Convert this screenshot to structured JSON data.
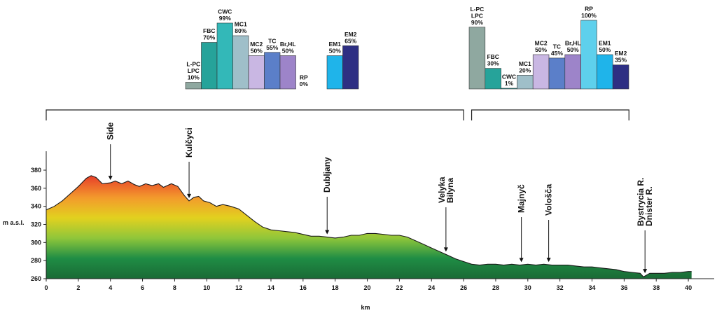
{
  "chart_data": [
    {
      "type": "bar",
      "id": "left-bars",
      "bars": [
        {
          "label": "L-PC LPC",
          "lines": [
            "L-PC",
            "LPC",
            "10%"
          ],
          "value": 10,
          "color": "#8fa8a0"
        },
        {
          "label": "FBC",
          "lines": [
            "FBC",
            "70%"
          ],
          "value": 70,
          "color": "#26a39a"
        },
        {
          "label": "CWC",
          "lines": [
            "CWC",
            "99%"
          ],
          "value": 99,
          "color": "#33b8b8"
        },
        {
          "label": "MC1",
          "lines": [
            "MC1",
            "80%"
          ],
          "value": 80,
          "color": "#9fbfc9"
        },
        {
          "label": "MC2",
          "lines": [
            "MC2",
            "50%"
          ],
          "value": 50,
          "color": "#c9b7e3"
        },
        {
          "label": "TC",
          "lines": [
            "TC",
            "55%"
          ],
          "value": 55,
          "color": "#5b7fc9"
        },
        {
          "label": "Br,HL",
          "lines": [
            "Br,HL",
            "50%"
          ],
          "value": 50,
          "color": "#9d84c9"
        },
        {
          "label": "RP",
          "lines": [
            "RP",
            "0%"
          ],
          "value": 0,
          "color": "#5ed0ec"
        },
        {
          "label": "EM1",
          "lines": [
            "EM1",
            "50%"
          ],
          "value": 50,
          "color": "#1fb4ea"
        },
        {
          "label": "EM2",
          "lines": [
            "EM2",
            "65%"
          ],
          "value": 65,
          "color": "#2e2f83"
        }
      ]
    },
    {
      "type": "bar",
      "id": "right-bars",
      "bars": [
        {
          "label": "L-PC LPC",
          "lines": [
            "L-PC",
            "LPC",
            "90%"
          ],
          "value": 90,
          "color": "#8fa8a0"
        },
        {
          "label": "FBC",
          "lines": [
            "FBC",
            "30%"
          ],
          "value": 30,
          "color": "#26a39a"
        },
        {
          "label": "CWC",
          "lines": [
            "CWC",
            "1%"
          ],
          "value": 1,
          "color": "#33b8b8"
        },
        {
          "label": "MC1",
          "lines": [
            "MC1",
            "20%"
          ],
          "value": 20,
          "color": "#9fbfc9"
        },
        {
          "label": "MC2",
          "lines": [
            "MC2",
            "50%"
          ],
          "value": 50,
          "color": "#c9b7e3"
        },
        {
          "label": "TC",
          "lines": [
            "TC",
            "45%"
          ],
          "value": 45,
          "color": "#5b7fc9"
        },
        {
          "label": "Br,HL",
          "lines": [
            "Br,HL",
            "50%"
          ],
          "value": 50,
          "color": "#9d84c9"
        },
        {
          "label": "RP",
          "lines": [
            "RP",
            "100%"
          ],
          "value": 100,
          "color": "#5ed0ec"
        },
        {
          "label": "EM1",
          "lines": [
            "EM1",
            "50%"
          ],
          "value": 50,
          "color": "#1fb4ea"
        },
        {
          "label": "EM2",
          "lines": [
            "EM2",
            "35%"
          ],
          "value": 35,
          "color": "#2e2f83"
        }
      ]
    },
    {
      "type": "area",
      "id": "elevation-profile",
      "xlabel": "km",
      "ylabel": "m a.s.l.",
      "xlim": [
        0,
        41
      ],
      "ylim": [
        260,
        380
      ],
      "xticks": [
        0,
        2,
        4,
        6,
        8,
        10,
        12,
        14,
        16,
        18,
        20,
        22,
        24,
        26,
        28,
        30,
        32,
        34,
        36,
        38,
        40
      ],
      "yticks": [
        260,
        280,
        300,
        320,
        340,
        360,
        380
      ],
      "grid": false,
      "gradient_colors": [
        "#e8452a",
        "#f39a2c",
        "#e2d11f",
        "#8fc63a",
        "#1f8d45",
        "#1a6a35"
      ],
      "x": [
        0,
        0.5,
        1,
        1.5,
        2,
        2.5,
        2.8,
        3.1,
        3.5,
        4,
        4.3,
        4.7,
        5.1,
        5.5,
        5.8,
        6.2,
        6.6,
        7,
        7.3,
        7.8,
        8.2,
        8.6,
        8.9,
        9.2,
        9.5,
        9.8,
        10.2,
        10.6,
        11,
        11.5,
        12,
        12.5,
        13,
        13.5,
        14,
        14.5,
        15,
        15.5,
        16,
        16.5,
        17,
        17.5,
        18,
        18.5,
        19,
        19.5,
        20,
        20.5,
        21,
        21.5,
        22,
        22.5,
        23,
        23.5,
        24,
        24.5,
        25,
        25.5,
        26,
        26.5,
        27,
        27.5,
        28,
        28.5,
        29,
        29.5,
        30,
        30.5,
        31,
        31.5,
        32,
        32.5,
        33,
        33.5,
        34,
        34.5,
        35,
        35.5,
        36,
        36.5,
        37,
        37.2,
        37.4,
        37.6,
        38,
        38.5,
        39,
        39.5,
        40,
        40.2
      ],
      "y": [
        336,
        340,
        346,
        354,
        362,
        371,
        374,
        372,
        365,
        366,
        368,
        365,
        368,
        364,
        362,
        365,
        363,
        365,
        361,
        365,
        362,
        352,
        346,
        350,
        351,
        346,
        344,
        340,
        342,
        340,
        337,
        330,
        323,
        317,
        314,
        313,
        312,
        311,
        309,
        307,
        307,
        306,
        305,
        306,
        308,
        308,
        310,
        310,
        309,
        308,
        308,
        306,
        302,
        298,
        294,
        290,
        286,
        282,
        279,
        276,
        275,
        276,
        276,
        275,
        276,
        275,
        276,
        275,
        276,
        275,
        275,
        275,
        274,
        273,
        273,
        272,
        271,
        270,
        268,
        267,
        266,
        262,
        264,
        266,
        266,
        266,
        267,
        267,
        268,
        268
      ]
    }
  ],
  "annotations": [
    {
      "id": "side",
      "text": "Side",
      "km": 4.0
    },
    {
      "id": "kulcyci",
      "text": "Kulčyci",
      "km": 8.9
    },
    {
      "id": "dubljany",
      "text": "Dubljany",
      "km": 17.5
    },
    {
      "id": "velyka-bilyna",
      "text": "Velyka Bilyna",
      "lines": [
        "Velyka",
        "Bilyna"
      ],
      "km": 24.9
    },
    {
      "id": "majnyc",
      "text": "Majnyč",
      "km": 29.6
    },
    {
      "id": "volosca",
      "text": "Vološča",
      "km": 31.3
    },
    {
      "id": "bystrycia",
      "text": "Bystrycia R. Dnister R.",
      "lines": [
        "Bystrycia R.",
        "Dnister R."
      ],
      "km": 37.3
    }
  ],
  "brackets": [
    {
      "id": "left-bracket",
      "from_km": 0,
      "to_km": 26.0
    },
    {
      "id": "right-bracket",
      "from_km": 26.5,
      "to_km": 36.3
    }
  ]
}
